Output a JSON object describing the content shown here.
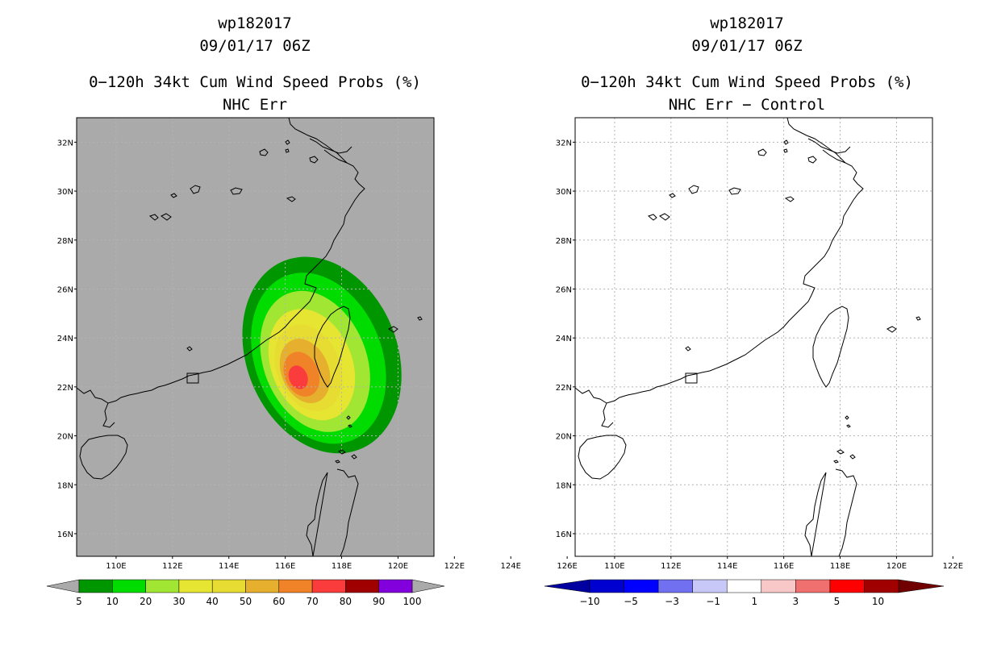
{
  "left_panel": {
    "storm_id": "wp182017",
    "datetime": "09/01/17 06Z",
    "title": "0−120h 34kt Cum Wind Speed Probs (%)",
    "subtitle": "NHC Err"
  },
  "right_panel": {
    "storm_id": "wp182017",
    "datetime": "09/01/17 06Z",
    "title": "0−120h 34kt Cum Wind Speed Probs (%)",
    "subtitle": "NHC Err − Control"
  },
  "lat_labels": [
    "32N",
    "30N",
    "28N",
    "26N",
    "24N",
    "22N",
    "20N",
    "18N",
    "16N"
  ],
  "lon_labels": [
    "110E",
    "112E",
    "114E",
    "116E",
    "118E",
    "120E",
    "122E",
    "124E",
    "126E"
  ],
  "colorbar_left": {
    "labels": [
      "5",
      "10",
      "20",
      "30",
      "40",
      "50",
      "60",
      "70",
      "80",
      "90",
      "100"
    ],
    "colors": [
      "#009600",
      "#00dc00",
      "#a0e632",
      "#e6e632",
      "#e6dc32",
      "#e6af2d",
      "#f08228",
      "#fa3c3c",
      "#a00000",
      "#8200dc"
    ],
    "under_color": "#aaaaaa",
    "over_color": "#aaaaaa"
  },
  "colorbar_right": {
    "labels": [
      "−10",
      "−5",
      "−3",
      "−1",
      "1",
      "3",
      "5",
      "10"
    ],
    "colors": [
      "#0000d0",
      "#0000ff",
      "#7070f0",
      "#c8c8f8",
      "#ffffff",
      "#f8c8c8",
      "#f07070",
      "#ff0000",
      "#a00000"
    ],
    "under_color": "#0000a0",
    "over_color": "#700000"
  },
  "probability_field": {
    "center_lat": 22.4,
    "center_lon": 117.3,
    "max_value": 70,
    "contour_levels": [
      5,
      10,
      20,
      30,
      40,
      50,
      60,
      70
    ],
    "background_color": "#aaaaaa"
  }
}
